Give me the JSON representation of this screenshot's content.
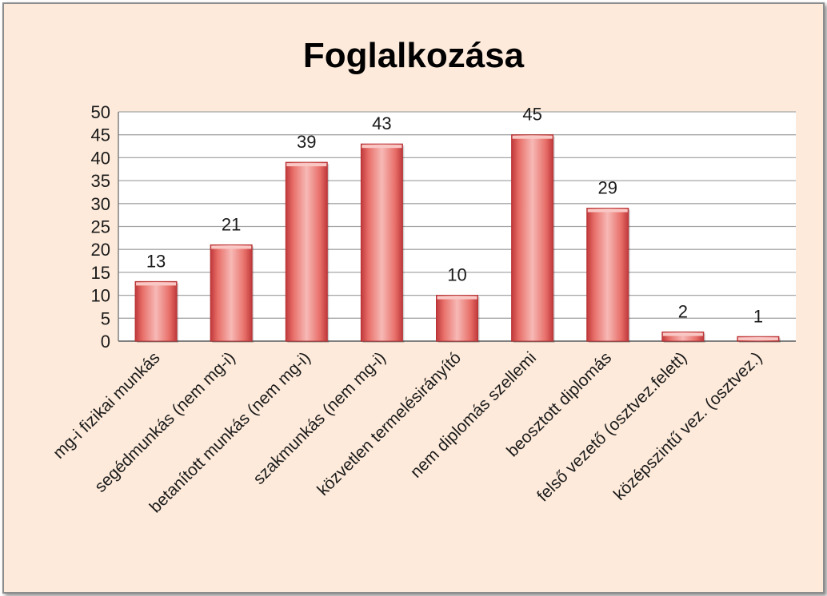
{
  "chart_data": {
    "type": "bar",
    "title": "Foglalkozása",
    "categories": [
      "mg-i fizikai munkás",
      "segédmunkás (nem mg-i)",
      "betanított munkás (nem mg-i)",
      "szakmunkás (nem mg-i)",
      "közvetlen termelésirányító",
      "nem diplomás szellemi",
      "beosztott diplomás",
      "felső vezető (osztvez.felett)",
      "középszintű vez. (osztvez.)"
    ],
    "values": [
      13,
      21,
      39,
      43,
      10,
      45,
      29,
      2,
      1
    ],
    "yticks": [
      "0",
      "5",
      "10",
      "15",
      "20",
      "25",
      "30",
      "35",
      "40",
      "45",
      "50"
    ],
    "ylim": [
      0,
      50
    ],
    "grid": true,
    "legend": "none",
    "xlabel": "",
    "ylabel": "",
    "colors": {
      "bar_light": "#f7b9b6",
      "bar_mid": "#e86f69",
      "bar_dark": "#c0393b",
      "background": "#fdeada",
      "plot_area": "#ffffff",
      "gridline": "#a6a6a6"
    }
  }
}
